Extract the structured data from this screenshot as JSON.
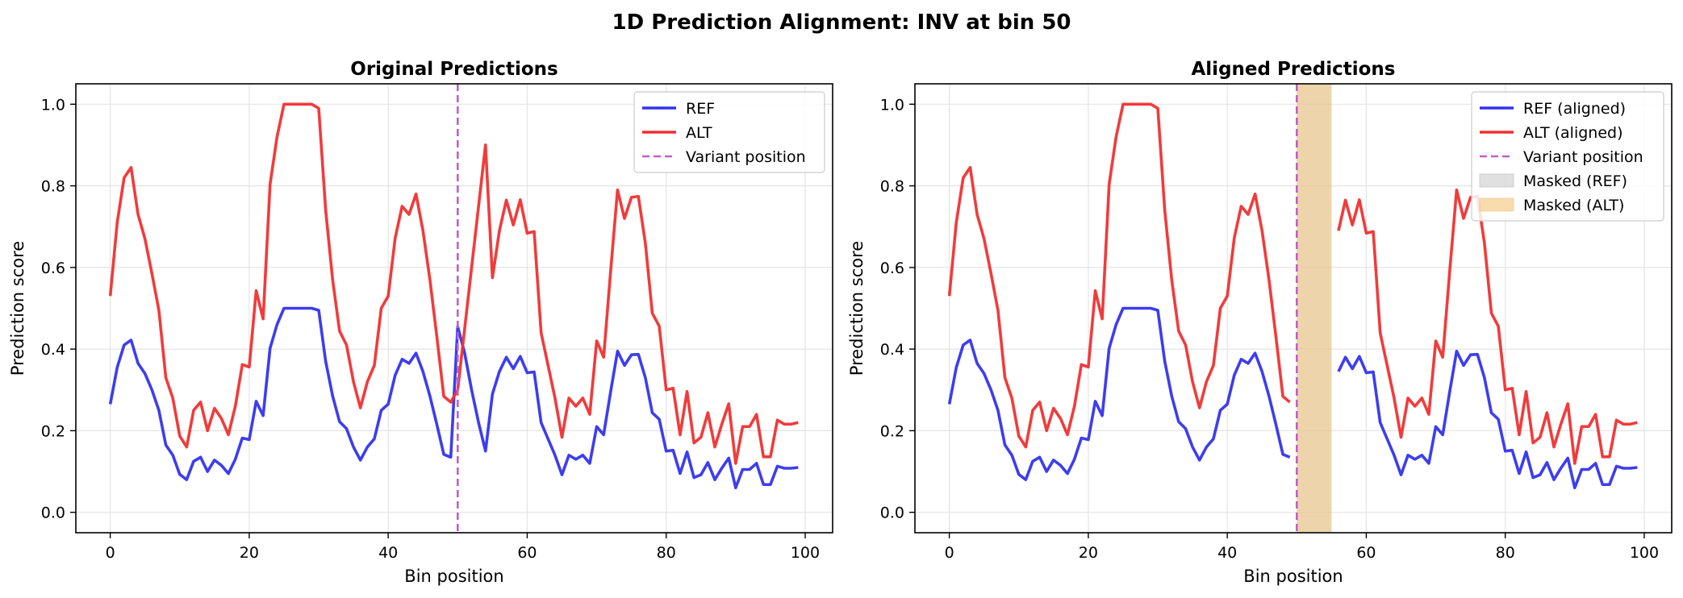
{
  "figure_title": "1D Prediction Alignment: INV at bin 50",
  "colors": {
    "ref": "#3333ee",
    "alt": "#f03030",
    "variant": "#c060c8",
    "mask_ref": "#cccccc",
    "mask_alt": "#f5c67a",
    "grid": "#e4e4e4",
    "axis": "#000000"
  },
  "chart_data": [
    {
      "type": "line",
      "title": "Original Predictions",
      "xlabel": "Bin position",
      "ylabel": "Prediction score",
      "xlim": [
        -4.95,
        103.95
      ],
      "ylim": [
        -0.05,
        1.05
      ],
      "xticks": [
        0,
        20,
        40,
        60,
        80,
        100
      ],
      "yticks": [
        0.0,
        0.2,
        0.4,
        0.6,
        0.8,
        1.0
      ],
      "xtick_labels": [
        "0",
        "20",
        "40",
        "60",
        "80",
        "100"
      ],
      "ytick_labels": [
        "0.0",
        "0.2",
        "0.4",
        "0.6",
        "0.8",
        "1.0"
      ],
      "grid": true,
      "legend_position": "upper right",
      "variant_position": 50,
      "legend": [
        "REF",
        "ALT",
        "Variant position"
      ],
      "series": [
        {
          "name": "REF",
          "color_key": "ref",
          "x_start": 0,
          "values": [
            0.265,
            0.355,
            0.41,
            0.422,
            0.365,
            0.34,
            0.3,
            0.25,
            0.165,
            0.14,
            0.093,
            0.08,
            0.125,
            0.135,
            0.1,
            0.128,
            0.115,
            0.095,
            0.13,
            0.182,
            0.178,
            0.272,
            0.237,
            0.402,
            0.46,
            0.5,
            0.5,
            0.5,
            0.5,
            0.5,
            0.495,
            0.37,
            0.285,
            0.222,
            0.205,
            0.16,
            0.128,
            0.16,
            0.18,
            0.25,
            0.265,
            0.336,
            0.375,
            0.365,
            0.39,
            0.345,
            0.285,
            0.215,
            0.142,
            0.135,
            0.455,
            0.39,
            0.3,
            0.22,
            0.15,
            0.29,
            0.345,
            0.38,
            0.352,
            0.382,
            0.342,
            0.344,
            0.22,
            0.18,
            0.14,
            0.092,
            0.14,
            0.13,
            0.14,
            0.12,
            0.21,
            0.19,
            0.295,
            0.395,
            0.36,
            0.386,
            0.387,
            0.33,
            0.244,
            0.228,
            0.15,
            0.152,
            0.095,
            0.148,
            0.085,
            0.092,
            0.122,
            0.08,
            0.108,
            0.133,
            0.06,
            0.105,
            0.105,
            0.12,
            0.068,
            0.068,
            0.113,
            0.108,
            0.108,
            0.11
          ]
        },
        {
          "name": "ALT",
          "color_key": "alt",
          "x_start": 0,
          "values": [
            0.53,
            0.71,
            0.82,
            0.845,
            0.73,
            0.67,
            0.585,
            0.495,
            0.33,
            0.28,
            0.187,
            0.16,
            0.25,
            0.27,
            0.2,
            0.255,
            0.23,
            0.19,
            0.26,
            0.362,
            0.356,
            0.543,
            0.474,
            0.804,
            0.92,
            1.0,
            1.0,
            1.0,
            1.0,
            1.0,
            0.99,
            0.74,
            0.57,
            0.444,
            0.41,
            0.32,
            0.256,
            0.32,
            0.36,
            0.5,
            0.53,
            0.672,
            0.75,
            0.73,
            0.78,
            0.69,
            0.57,
            0.43,
            0.284,
            0.27,
            0.3,
            0.45,
            0.6,
            0.75,
            0.9,
            0.575,
            0.69,
            0.765,
            0.704,
            0.766,
            0.684,
            0.688,
            0.44,
            0.36,
            0.28,
            0.184,
            0.28,
            0.26,
            0.28,
            0.24,
            0.42,
            0.38,
            0.59,
            0.79,
            0.72,
            0.772,
            0.774,
            0.66,
            0.488,
            0.456,
            0.3,
            0.304,
            0.19,
            0.296,
            0.17,
            0.184,
            0.244,
            0.16,
            0.216,
            0.266,
            0.12,
            0.21,
            0.21,
            0.24,
            0.136,
            0.136,
            0.226,
            0.216,
            0.216,
            0.22
          ]
        }
      ]
    },
    {
      "type": "line",
      "title": "Aligned Predictions",
      "xlabel": "Bin position",
      "ylabel": "Prediction score",
      "xlim": [
        -4.95,
        103.95
      ],
      "ylim": [
        -0.05,
        1.05
      ],
      "xticks": [
        0,
        20,
        40,
        60,
        80,
        100
      ],
      "yticks": [
        0.0,
        0.2,
        0.4,
        0.6,
        0.8,
        1.0
      ],
      "xtick_labels": [
        "0",
        "20",
        "40",
        "60",
        "80",
        "100"
      ],
      "ytick_labels": [
        "0.0",
        "0.2",
        "0.4",
        "0.6",
        "0.8",
        "1.0"
      ],
      "grid": true,
      "legend_position": "upper right",
      "variant_position": 50,
      "masked_ref_range": [
        50,
        55
      ],
      "masked_alt_range": [
        50,
        55
      ],
      "legend": [
        "REF (aligned)",
        "ALT (aligned)",
        "Variant position",
        "Masked (REF)",
        "Masked (ALT)"
      ],
      "series": [
        {
          "name": "REF (aligned)",
          "color_key": "ref",
          "x_start": 0,
          "values": [
            0.265,
            0.355,
            0.41,
            0.422,
            0.365,
            0.34,
            0.3,
            0.25,
            0.165,
            0.14,
            0.093,
            0.08,
            0.125,
            0.135,
            0.1,
            0.128,
            0.115,
            0.095,
            0.13,
            0.182,
            0.178,
            0.272,
            0.237,
            0.402,
            0.46,
            0.5,
            0.5,
            0.5,
            0.5,
            0.5,
            0.495,
            0.37,
            0.285,
            0.222,
            0.205,
            0.16,
            0.128,
            0.16,
            0.18,
            0.25,
            0.265,
            0.336,
            0.375,
            0.365,
            0.39,
            0.345,
            0.285,
            0.215,
            0.142,
            0.135
          ]
        },
        {
          "name": "ALT (aligned)",
          "color_key": "alt",
          "x_start": 0,
          "values": [
            0.53,
            0.71,
            0.82,
            0.845,
            0.73,
            0.67,
            0.585,
            0.495,
            0.33,
            0.28,
            0.187,
            0.16,
            0.25,
            0.27,
            0.2,
            0.255,
            0.23,
            0.19,
            0.26,
            0.362,
            0.356,
            0.543,
            0.474,
            0.804,
            0.92,
            1.0,
            1.0,
            1.0,
            1.0,
            1.0,
            0.99,
            0.74,
            0.57,
            0.444,
            0.41,
            0.32,
            0.256,
            0.32,
            0.36,
            0.5,
            0.53,
            0.672,
            0.75,
            0.73,
            0.78,
            0.69,
            0.57,
            0.43,
            0.284,
            0.27
          ]
        },
        {
          "name": "REF (aligned)",
          "color_key": "ref",
          "x_start": 56,
          "values": [
            0.345,
            0.38,
            0.352,
            0.382,
            0.342,
            0.344,
            0.22,
            0.18,
            0.14,
            0.092,
            0.14,
            0.13,
            0.14,
            0.12,
            0.21,
            0.19,
            0.295,
            0.395,
            0.36,
            0.386,
            0.387,
            0.33,
            0.244,
            0.228,
            0.15,
            0.152,
            0.095,
            0.148,
            0.085,
            0.092,
            0.122,
            0.08,
            0.108,
            0.133,
            0.06,
            0.105,
            0.105,
            0.12,
            0.068,
            0.068,
            0.113,
            0.108,
            0.108,
            0.11
          ]
        },
        {
          "name": "ALT (aligned)",
          "color_key": "alt",
          "x_start": 56,
          "values": [
            0.69,
            0.765,
            0.704,
            0.766,
            0.684,
            0.688,
            0.44,
            0.36,
            0.28,
            0.184,
            0.28,
            0.26,
            0.28,
            0.24,
            0.42,
            0.38,
            0.59,
            0.79,
            0.72,
            0.772,
            0.774,
            0.66,
            0.488,
            0.456,
            0.3,
            0.304,
            0.19,
            0.296,
            0.17,
            0.184,
            0.244,
            0.16,
            0.216,
            0.266,
            0.12,
            0.21,
            0.21,
            0.24,
            0.136,
            0.136,
            0.226,
            0.216,
            0.216,
            0.22
          ]
        }
      ]
    }
  ]
}
